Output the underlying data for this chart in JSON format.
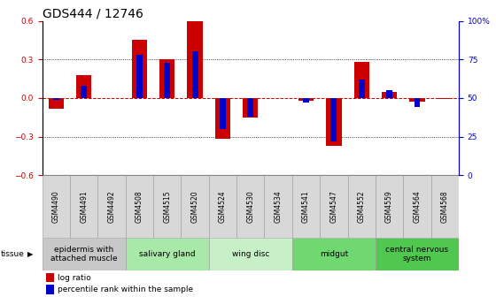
{
  "title": "GDS444 / 12746",
  "samples": [
    "GSM4490",
    "GSM4491",
    "GSM4492",
    "GSM4508",
    "GSM4515",
    "GSM4520",
    "GSM4524",
    "GSM4530",
    "GSM4534",
    "GSM4541",
    "GSM4547",
    "GSM4552",
    "GSM4559",
    "GSM4564",
    "GSM4568"
  ],
  "log_ratio": [
    -0.08,
    0.18,
    0.0,
    0.45,
    0.3,
    0.6,
    -0.32,
    -0.15,
    0.0,
    -0.02,
    -0.37,
    0.28,
    0.05,
    -0.03,
    -0.01
  ],
  "percentile": [
    49,
    58,
    50,
    78,
    73,
    80,
    30,
    38,
    50,
    47,
    22,
    62,
    55,
    44,
    50
  ],
  "bar_color_red": "#cc0000",
  "bar_color_blue": "#0000cc",
  "tissue_groups": [
    {
      "label": "epidermis with\nattached muscle",
      "start": 0,
      "end": 3,
      "color": "#c8c8c8"
    },
    {
      "label": "salivary gland",
      "start": 3,
      "end": 6,
      "color": "#a8e8a8"
    },
    {
      "label": "wing disc",
      "start": 6,
      "end": 9,
      "color": "#c8f0c8"
    },
    {
      "label": "midgut",
      "start": 9,
      "end": 12,
      "color": "#70d870"
    },
    {
      "label": "central nervous\nsystem",
      "start": 12,
      "end": 15,
      "color": "#50c850"
    }
  ],
  "ylim_left": [
    -0.6,
    0.6
  ],
  "ylim_right": [
    0,
    100
  ],
  "yticks_left": [
    -0.6,
    -0.3,
    0.0,
    0.3,
    0.6
  ],
  "yticks_right": [
    0,
    25,
    50,
    75,
    100
  ],
  "ytick_labels_right": [
    "0",
    "25",
    "50",
    "75",
    "100%"
  ],
  "hlines": [
    0.3,
    -0.3
  ],
  "background_color": "#ffffff",
  "axis_color_left": "#cc0000",
  "axis_color_right": "#0000cc",
  "title_fontsize": 10,
  "tick_fontsize": 6.5,
  "sample_fontsize": 5.5,
  "tissue_fontsize": 6.5,
  "legend_fontsize": 6.5
}
